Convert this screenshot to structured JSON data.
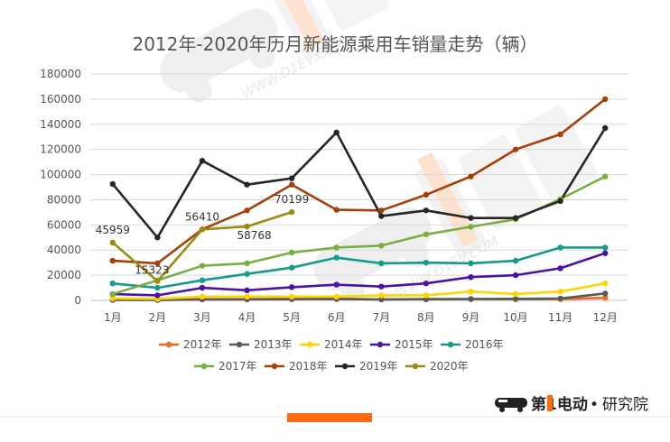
{
  "chart_data": {
    "type": "line",
    "title": "2012年-2020年历月新能源乘用车销量走势（辆）",
    "categories": [
      "1月",
      "2月",
      "3月",
      "4月",
      "5月",
      "6月",
      "7月",
      "8月",
      "9月",
      "10月",
      "11月",
      "12月"
    ],
    "y_ticks": [
      "0",
      "20000",
      "40000",
      "60000",
      "80000",
      "100000",
      "120000",
      "140000",
      "160000",
      "180000"
    ],
    "ylim": [
      0,
      180000
    ],
    "grid": "horizontal",
    "legend_position": "bottom",
    "series": [
      {
        "name": "2012年",
        "color": "#f26b1d",
        "values": [
          500,
          500,
          800,
          900,
          1000,
          1100,
          800,
          900,
          1000,
          900,
          1000,
          2000
        ]
      },
      {
        "name": "2013年",
        "color": "#595959",
        "values": [
          400,
          300,
          800,
          800,
          1000,
          1200,
          800,
          900,
          1100,
          1200,
          1500,
          5500
        ]
      },
      {
        "name": "2014年",
        "color": "#ffd500",
        "values": [
          1500,
          1200,
          3000,
          3000,
          3000,
          3000,
          4000,
          4000,
          7000,
          5000,
          7000,
          13500
        ]
      },
      {
        "name": "2015年",
        "color": "#4b12a8",
        "values": [
          5000,
          4000,
          10000,
          8000,
          10500,
          12500,
          11000,
          13500,
          18500,
          20000,
          25500,
          37500
        ]
      },
      {
        "name": "2016年",
        "color": "#149b8c",
        "values": [
          13500,
          10000,
          16000,
          21000,
          26000,
          34000,
          29500,
          30000,
          29500,
          31500,
          42000,
          42000
        ]
      },
      {
        "name": "2017年",
        "color": "#77b041",
        "values": [
          5000,
          16000,
          27500,
          29500,
          38000,
          42000,
          43500,
          52500,
          58500,
          64500,
          80500,
          98500
        ]
      },
      {
        "name": "2018年",
        "color": "#a64009",
        "values": [
          31500,
          29500,
          56500,
          71500,
          92000,
          72000,
          71500,
          84000,
          98500,
          120000,
          132000,
          160000
        ]
      },
      {
        "name": "2019年",
        "color": "#262626",
        "values": [
          92500,
          50000,
          111000,
          92000,
          97000,
          133500,
          67000,
          71500,
          65500,
          65500,
          79000,
          137000
        ]
      },
      {
        "name": "2020年",
        "color": "#9e8a10",
        "values": [
          45959,
          15323,
          56410,
          58768,
          70199,
          null,
          null,
          null,
          null,
          null,
          null,
          null
        ]
      }
    ],
    "data_labels": [
      {
        "series": "2020年",
        "index": 0,
        "text": "45959"
      },
      {
        "series": "2020年",
        "index": 1,
        "text": "15323"
      },
      {
        "series": "2020年",
        "index": 2,
        "text": "56410"
      },
      {
        "series": "2020年",
        "index": 3,
        "text": "58768"
      },
      {
        "series": "2020年",
        "index": 4,
        "text": "70199"
      }
    ]
  },
  "brand": {
    "logo_text": "第1电动",
    "separator": "•",
    "suffix": "研究院",
    "watermark_logo_text": "第1电动",
    "watermark_url": "WWW.D1EV.COM"
  },
  "colors": {
    "accent_bar": "#ff6a10",
    "grid": "#d9d9d9",
    "watermark": "#ececec"
  }
}
